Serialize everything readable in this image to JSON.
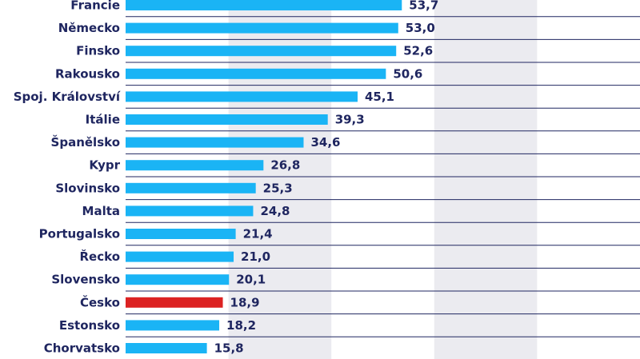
{
  "chart_data": {
    "type": "bar",
    "orientation": "horizontal",
    "categories": [
      "Francie",
      "Německo",
      "Finsko",
      "Rakousko",
      "Spoj. Království",
      "Itálie",
      "Španělsko",
      "Kypr",
      "Slovinsko",
      "Malta",
      "Portugalsko",
      "Řecko",
      "Slovensko",
      "Česko",
      "Estonsko",
      "Chorvatsko"
    ],
    "values": [
      53.7,
      53.0,
      52.6,
      50.6,
      45.1,
      39.3,
      34.6,
      26.8,
      25.3,
      24.8,
      21.4,
      21.0,
      20.1,
      18.9,
      18.2,
      15.8
    ],
    "value_labels": [
      "53,7",
      "53,0",
      "52,6",
      "50,6",
      "45,1",
      "39,3",
      "34,6",
      "26,8",
      "25,3",
      "24,8",
      "21,4",
      "21,0",
      "20,1",
      "18,9",
      "18,2",
      "15,8"
    ],
    "highlight_category": "Česko",
    "colors": {
      "bar": "#1ab4f5",
      "highlight": "#dc2222",
      "text": "#1f2660",
      "gridline": "#1f2660",
      "band": "#ebebf0"
    },
    "xlim": [
      0,
      100
    ],
    "grid": true,
    "legend": "none"
  }
}
